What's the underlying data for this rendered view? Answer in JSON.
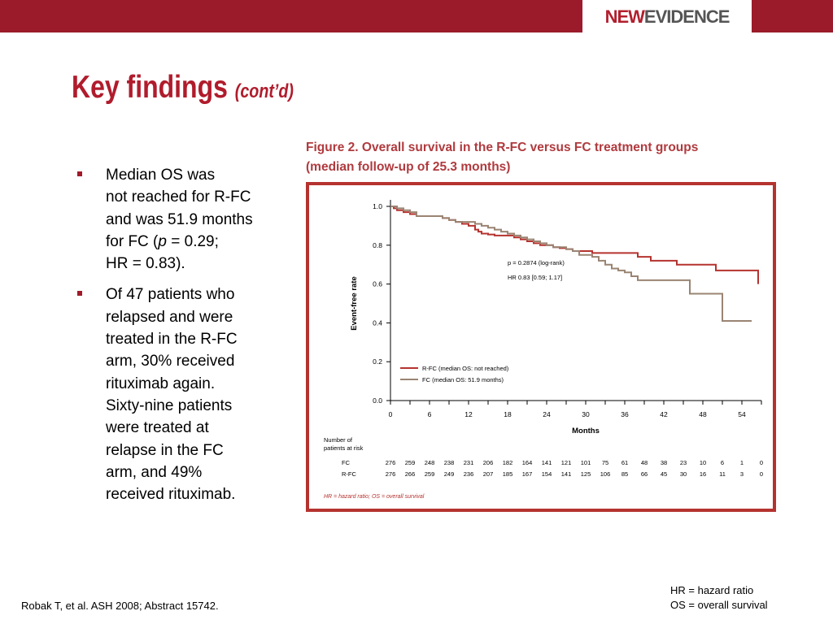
{
  "header": {
    "logo_part1": "NEW",
    "logo_part2": "EVIDENCE"
  },
  "slide_title": {
    "main": "Key findings",
    "sub": "(cont’d)"
  },
  "bullets": [
    {
      "lines": [
        "Median OS was",
        "not reached for R-FC",
        "and was 51.9 months",
        "for FC (<i>p</i> = 0.29;",
        "HR = 0.83)."
      ]
    },
    {
      "lines": [
        "Of 47 patients who",
        "relapsed and were",
        "treated in the R-FC",
        "arm, 30% received",
        "rituximab again.",
        "Sixty-nine patients",
        "were treated at",
        "relapse in the FC",
        "arm, and 49%",
        "received rituximab."
      ]
    }
  ],
  "figure": {
    "title_line1": "Figure 2. Overall survival in the R-FC versus FC treatment groups",
    "title_line2": "(median follow-up of 25.3 months)",
    "footnote": "HR = hazard ratio; OS = overall survival"
  },
  "chart_data": {
    "type": "line",
    "xlabel": "Months",
    "ylabel": "Event-free rate",
    "xlim": [
      0,
      57
    ],
    "ylim": [
      0,
      1.0
    ],
    "xticks": [
      0,
      6,
      12,
      18,
      24,
      30,
      36,
      42,
      48,
      54
    ],
    "yticks": [
      "0.0",
      "0.2",
      "0.4",
      "0.6",
      "0.8",
      "1.0"
    ],
    "annotations": [
      "p = 0.2874 (log-rank)",
      "HR 0.83 [0.59; 1.17]"
    ],
    "legend_position": "bottom-left",
    "series": [
      {
        "name": "R-FC (median OS: not reached)",
        "color": "#b5332f",
        "step_x": [
          0,
          0.5,
          1,
          2,
          3,
          4,
          6,
          8,
          9,
          10,
          11,
          12,
          13,
          13.5,
          14,
          15,
          16,
          18,
          19,
          20,
          21,
          22,
          23,
          24,
          25,
          26,
          27,
          28,
          30,
          31,
          36,
          38,
          40,
          44,
          50,
          56.5
        ],
        "step_y": [
          1.0,
          0.99,
          0.98,
          0.97,
          0.96,
          0.95,
          0.95,
          0.94,
          0.93,
          0.92,
          0.91,
          0.9,
          0.88,
          0.87,
          0.86,
          0.855,
          0.85,
          0.85,
          0.84,
          0.83,
          0.82,
          0.81,
          0.8,
          0.8,
          0.79,
          0.785,
          0.78,
          0.77,
          0.77,
          0.76,
          0.76,
          0.74,
          0.72,
          0.7,
          0.67,
          0.6
        ]
      },
      {
        "name": "FC (median OS: 51.9 months)",
        "color": "#9a8472",
        "step_x": [
          0,
          1,
          2,
          3,
          4,
          6,
          8,
          9,
          10,
          13,
          14,
          15,
          16,
          17,
          18,
          19,
          20,
          21,
          22,
          23,
          24,
          25,
          27,
          28,
          29,
          31,
          32,
          33,
          34,
          35,
          36,
          37,
          38,
          46,
          51,
          55.5
        ],
        "step_y": [
          1.0,
          0.99,
          0.98,
          0.97,
          0.95,
          0.95,
          0.94,
          0.93,
          0.92,
          0.91,
          0.9,
          0.89,
          0.88,
          0.87,
          0.86,
          0.85,
          0.84,
          0.83,
          0.82,
          0.81,
          0.8,
          0.79,
          0.78,
          0.77,
          0.75,
          0.74,
          0.72,
          0.7,
          0.68,
          0.67,
          0.66,
          0.64,
          0.62,
          0.55,
          0.41,
          0.41
        ]
      }
    ],
    "risk_table": {
      "header": [
        "Number of",
        "patients at risk"
      ],
      "rows": [
        {
          "label": "FC",
          "values": [
            "276",
            "259",
            "248",
            "238",
            "231",
            "206",
            "182",
            "164",
            "141",
            "121",
            "101",
            "75",
            "61",
            "48",
            "38",
            "23",
            "10",
            "6",
            "1",
            "0"
          ]
        },
        {
          "label": "R-FC",
          "values": [
            "276",
            "266",
            "259",
            "249",
            "236",
            "207",
            "185",
            "167",
            "154",
            "141",
            "125",
            "106",
            "85",
            "66",
            "45",
            "30",
            "16",
            "11",
            "3",
            "0"
          ]
        }
      ]
    }
  },
  "footer": {
    "citation": "Robak T, et al. ASH 2008; Abstract 15742.",
    "abbrev_line1": "HR = hazard ratio",
    "abbrev_line2": "OS = overall survival"
  }
}
